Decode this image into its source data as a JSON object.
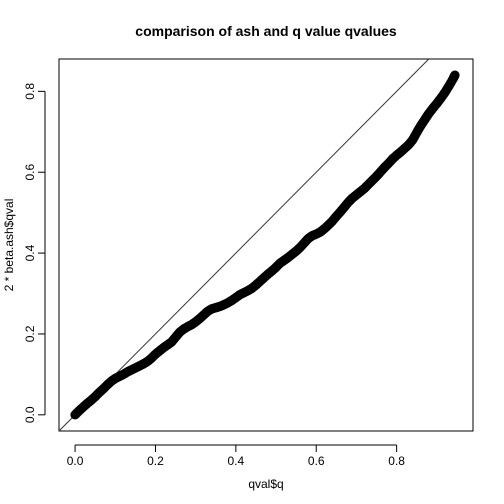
{
  "chart_data": {
    "type": "scatter",
    "title": "comparison of ash and q value qvalues",
    "xlabel": "qval$q",
    "ylabel": "2 * beta.ash$qval",
    "xlim": [
      -0.04,
      0.99
    ],
    "ylim": [
      -0.04,
      0.88
    ],
    "x_ticks": [
      0.0,
      0.2,
      0.4,
      0.6,
      0.8
    ],
    "x_tick_labels": [
      "0.0",
      "0.2",
      "0.4",
      "0.6",
      "0.8"
    ],
    "y_ticks": [
      0.0,
      0.2,
      0.4,
      0.6,
      0.8
    ],
    "y_tick_labels": [
      "0.0",
      "0.2",
      "0.4",
      "0.6",
      "0.8"
    ],
    "reference_line": {
      "intercept": 0,
      "slope": 1
    },
    "grid": false,
    "legend": "none",
    "point_color": "#000000",
    "points": [
      [
        0.0,
        0.0
      ],
      [
        0.01,
        0.01
      ],
      [
        0.02,
        0.019
      ],
      [
        0.03,
        0.028
      ],
      [
        0.04,
        0.036
      ],
      [
        0.05,
        0.045
      ],
      [
        0.06,
        0.055
      ],
      [
        0.07,
        0.064
      ],
      [
        0.08,
        0.074
      ],
      [
        0.09,
        0.083
      ],
      [
        0.1,
        0.09
      ],
      [
        0.11,
        0.095
      ],
      [
        0.12,
        0.1
      ],
      [
        0.13,
        0.106
      ],
      [
        0.14,
        0.111
      ],
      [
        0.15,
        0.116
      ],
      [
        0.16,
        0.121
      ],
      [
        0.17,
        0.126
      ],
      [
        0.18,
        0.132
      ],
      [
        0.19,
        0.14
      ],
      [
        0.2,
        0.15
      ],
      [
        0.21,
        0.158
      ],
      [
        0.22,
        0.166
      ],
      [
        0.23,
        0.173
      ],
      [
        0.24,
        0.18
      ],
      [
        0.25,
        0.192
      ],
      [
        0.26,
        0.204
      ],
      [
        0.27,
        0.212
      ],
      [
        0.28,
        0.218
      ],
      [
        0.29,
        0.223
      ],
      [
        0.3,
        0.23
      ],
      [
        0.31,
        0.238
      ],
      [
        0.32,
        0.247
      ],
      [
        0.33,
        0.256
      ],
      [
        0.34,
        0.262
      ],
      [
        0.35,
        0.265
      ],
      [
        0.36,
        0.268
      ],
      [
        0.37,
        0.272
      ],
      [
        0.38,
        0.277
      ],
      [
        0.39,
        0.283
      ],
      [
        0.4,
        0.29
      ],
      [
        0.41,
        0.297
      ],
      [
        0.42,
        0.302
      ],
      [
        0.43,
        0.307
      ],
      [
        0.44,
        0.313
      ],
      [
        0.45,
        0.321
      ],
      [
        0.46,
        0.33
      ],
      [
        0.47,
        0.339
      ],
      [
        0.48,
        0.348
      ],
      [
        0.49,
        0.356
      ],
      [
        0.5,
        0.365
      ],
      [
        0.51,
        0.375
      ],
      [
        0.52,
        0.382
      ],
      [
        0.53,
        0.389
      ],
      [
        0.54,
        0.397
      ],
      [
        0.55,
        0.405
      ],
      [
        0.56,
        0.414
      ],
      [
        0.57,
        0.425
      ],
      [
        0.58,
        0.436
      ],
      [
        0.59,
        0.443
      ],
      [
        0.6,
        0.447
      ],
      [
        0.61,
        0.452
      ],
      [
        0.62,
        0.46
      ],
      [
        0.63,
        0.469
      ],
      [
        0.64,
        0.479
      ],
      [
        0.65,
        0.491
      ],
      [
        0.66,
        0.502
      ],
      [
        0.67,
        0.514
      ],
      [
        0.68,
        0.526
      ],
      [
        0.69,
        0.536
      ],
      [
        0.7,
        0.544
      ],
      [
        0.71,
        0.552
      ],
      [
        0.72,
        0.56
      ],
      [
        0.73,
        0.57
      ],
      [
        0.74,
        0.58
      ],
      [
        0.75,
        0.59
      ],
      [
        0.76,
        0.601
      ],
      [
        0.77,
        0.612
      ],
      [
        0.78,
        0.622
      ],
      [
        0.79,
        0.633
      ],
      [
        0.8,
        0.642
      ],
      [
        0.81,
        0.65
      ],
      [
        0.82,
        0.659
      ],
      [
        0.83,
        0.668
      ],
      [
        0.84,
        0.68
      ],
      [
        0.85,
        0.698
      ],
      [
        0.86,
        0.715
      ],
      [
        0.87,
        0.73
      ],
      [
        0.88,
        0.745
      ],
      [
        0.89,
        0.758
      ],
      [
        0.9,
        0.77
      ],
      [
        0.91,
        0.783
      ],
      [
        0.92,
        0.797
      ],
      [
        0.93,
        0.813
      ],
      [
        0.94,
        0.83
      ],
      [
        0.945,
        0.84
      ]
    ]
  }
}
